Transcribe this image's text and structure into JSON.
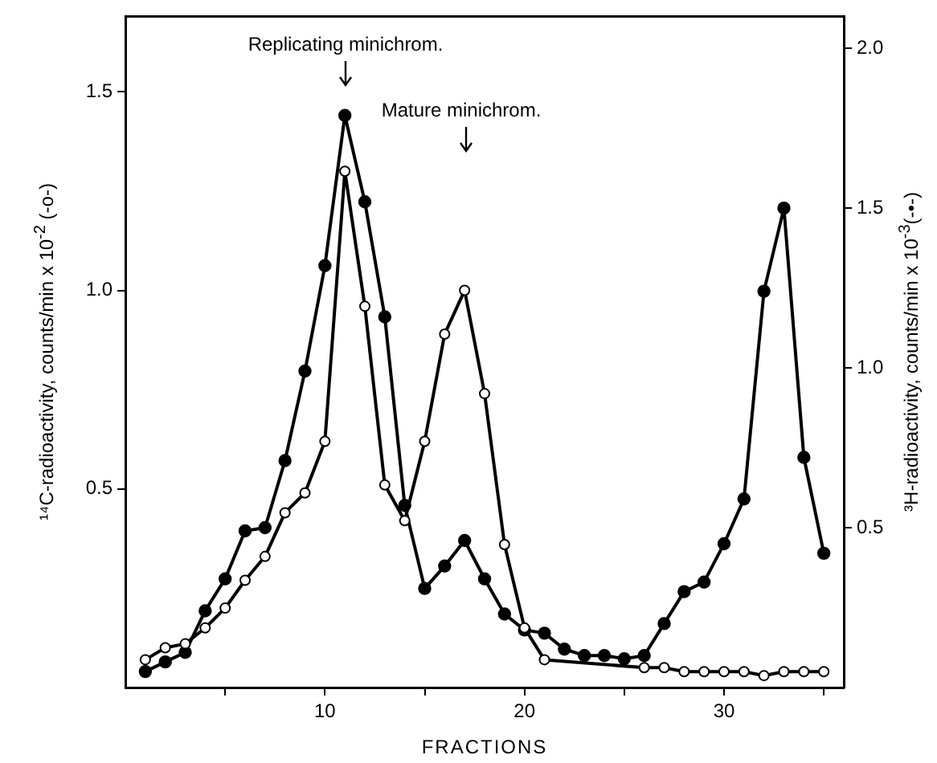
{
  "chart_data": {
    "type": "line",
    "xlabel": "FRACTIONS",
    "ylabel": "¹⁴C-radioactivity, counts/min x 10$^{-2}$ (-o-)",
    "y2label": "³H-radioactivity, counts/min x 10$^{-3}$(-•-)",
    "x": [
      1,
      2,
      3,
      4,
      5,
      6,
      7,
      8,
      9,
      10,
      11,
      12,
      13,
      14,
      15,
      16,
      17,
      18,
      19,
      20,
      21,
      22,
      23,
      24,
      25,
      26,
      27,
      28,
      29,
      30,
      31,
      32,
      33,
      34,
      35
    ],
    "series": [
      {
        "color": "#000000",
        "axis": "y",
        "values": [
          0.07,
          0.1,
          0.11,
          0.15,
          0.2,
          0.27,
          0.33,
          0.44,
          0.49,
          0.62,
          1.3,
          0.96,
          0.51,
          0.42,
          0.62,
          0.89,
          1.0,
          0.74,
          0.36,
          0.15,
          0.07,
          null,
          null,
          null,
          null,
          0.05,
          0.05,
          0.04,
          0.04,
          0.04,
          0.04,
          0.03,
          0.04,
          0.04,
          0.04
        ]
      },
      {
        "color": "#000000",
        "axis": "y2",
        "values": [
          0.05,
          0.08,
          0.11,
          0.24,
          0.34,
          0.49,
          0.5,
          0.71,
          0.99,
          1.32,
          1.79,
          1.52,
          1.16,
          0.57,
          0.31,
          0.38,
          0.46,
          0.34,
          0.23,
          0.18,
          0.17,
          0.12,
          0.1,
          0.1,
          0.09,
          0.1,
          0.2,
          0.3,
          0.33,
          0.45,
          0.59,
          1.24,
          1.5,
          0.72,
          0.42
        ]
      }
    ],
    "xlim": [
      0,
      36
    ],
    "xticks": [
      {
        "value": 5,
        "label": null
      },
      10,
      {
        "value": 15,
        "label": null
      },
      20,
      {
        "value": 25,
        "label": null
      },
      30,
      {
        "value": 35,
        "label": null
      }
    ],
    "ylim": [
      0,
      1.69
    ],
    "yticks": [
      {
        "value": 0.5,
        "label": "0.5"
      },
      {
        "value": 1.0,
        "label": "1.0"
      },
      {
        "value": 1.5,
        "label": "1.5"
      }
    ],
    "y2lim": [
      0,
      2.1
    ],
    "y2ticks": [
      {
        "value": 0.5,
        "label": "0.5"
      },
      {
        "value": 1.0,
        "label": "1.0"
      },
      {
        "value": 1.5,
        "label": "1.5"
      },
      {
        "value": 2.0,
        "label": "2.0"
      }
    ],
    "annotations": [
      "Replicating minichrom.",
      "Mature minichrom."
    ],
    "marker": "circle",
    "line_style": "solid",
    "legend": false,
    "grid": false
  }
}
